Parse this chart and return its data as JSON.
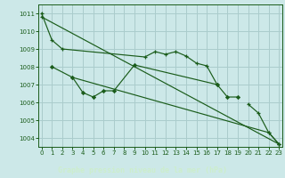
{
  "title": "Graphe pression niveau de la mer (hPa)",
  "bg_color": "#cce8e8",
  "grid_color": "#aacccc",
  "line_color": "#1a5c1a",
  "xlabel_bg": "#2d6e2d",
  "xlabel_fg": "#cceecc",
  "xlim": [
    -0.3,
    23.3
  ],
  "ylim": [
    1003.5,
    1011.5
  ],
  "yticks": [
    1004,
    1005,
    1006,
    1007,
    1008,
    1009,
    1010,
    1011
  ],
  "xticks": [
    0,
    1,
    2,
    3,
    4,
    5,
    6,
    7,
    8,
    9,
    10,
    11,
    12,
    13,
    14,
    15,
    16,
    17,
    18,
    19,
    20,
    21,
    22,
    23
  ],
  "line1_x": [
    0,
    1,
    2,
    10,
    11,
    12,
    13,
    14,
    15,
    16,
    17
  ],
  "line1_y": [
    1011.0,
    1009.5,
    1009.0,
    1008.55,
    1008.85,
    1008.7,
    1008.85,
    1008.6,
    1008.2,
    1008.05,
    1007.0
  ],
  "line2_x": [
    1,
    3,
    4,
    5,
    6,
    7,
    9,
    17,
    18,
    19
  ],
  "line2_y": [
    1008.0,
    1007.4,
    1006.55,
    1006.3,
    1006.65,
    1006.65,
    1008.1,
    1007.0,
    1006.3,
    1006.3
  ],
  "line3_x": [
    0,
    23
  ],
  "line3_y": [
    1010.8,
    1003.65
  ],
  "line4_x": [
    3,
    22,
    23
  ],
  "line4_y": [
    1007.4,
    1004.3,
    1003.65
  ],
  "line5_x": [
    20,
    21,
    22,
    23
  ],
  "line5_y": [
    1005.9,
    1005.4,
    1004.3,
    1003.65
  ]
}
